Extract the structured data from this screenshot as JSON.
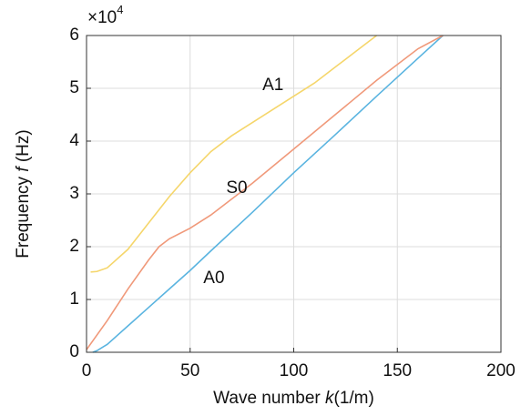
{
  "chart_data": {
    "type": "line",
    "xlabel": [
      "Wave number ",
      "k",
      "(1/m)"
    ],
    "ylabel": [
      "Frequency ",
      "f",
      " (Hz)"
    ],
    "y_scale_base": "×10",
    "y_scale_exponent": "4",
    "xlim": [
      0,
      200
    ],
    "ylim": [
      0,
      6
    ],
    "xticks": [
      0,
      50,
      100,
      150,
      200
    ],
    "yticks": [
      0,
      1,
      2,
      3,
      4,
      5,
      6
    ],
    "grid": true,
    "series": [
      {
        "color": "#5ab4e0",
        "x": [
          3,
          5,
          10,
          20,
          30,
          40,
          50,
          60,
          80,
          100,
          120,
          140,
          160,
          172
        ],
        "values": [
          0,
          0.03,
          0.15,
          0.5,
          0.85,
          1.2,
          1.55,
          1.92,
          2.65,
          3.4,
          4.12,
          4.85,
          5.57,
          6.0
        ]
      },
      {
        "color": "#f0997a",
        "x": [
          0,
          10,
          20,
          30,
          35,
          40,
          50,
          60,
          70,
          80,
          100,
          120,
          140,
          160,
          172
        ],
        "values": [
          0.05,
          0.6,
          1.2,
          1.75,
          2.0,
          2.15,
          2.35,
          2.6,
          2.9,
          3.2,
          3.85,
          4.5,
          5.15,
          5.75,
          6.0
        ]
      },
      {
        "color": "#f5d66b",
        "x": [
          2,
          5,
          10,
          20,
          30,
          40,
          50,
          60,
          70,
          80,
          90,
          100,
          110,
          120,
          130,
          140
        ],
        "values": [
          1.52,
          1.53,
          1.6,
          1.95,
          2.45,
          2.95,
          3.4,
          3.8,
          4.1,
          4.35,
          4.6,
          4.85,
          5.1,
          5.4,
          5.7,
          6.0
        ]
      }
    ],
    "annotations": [
      {
        "text": "A1",
        "x": 90,
        "y": 5.05
      },
      {
        "text": "S0",
        "x": 72.5,
        "y": 3.1
      },
      {
        "text": "A0",
        "x": 61.5,
        "y": 1.4
      }
    ]
  }
}
